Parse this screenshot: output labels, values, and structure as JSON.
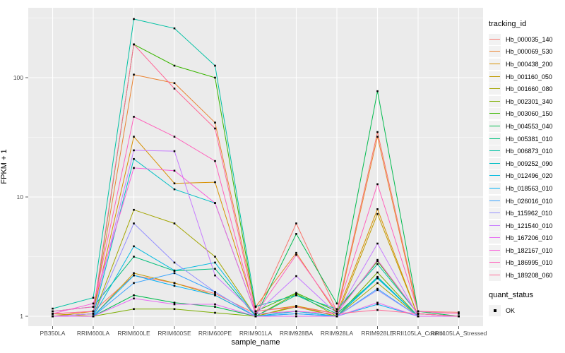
{
  "chart_data": {
    "type": "line",
    "xlabel": "sample_name",
    "ylabel": "FPKM + 1",
    "y_scale": "log10",
    "y_ticks": [
      1,
      10,
      100
    ],
    "ylim": [
      0.9,
      380
    ],
    "grid": true,
    "panel_bg": "#ebebeb",
    "grid_color": "#ffffff",
    "point_color": "#000000",
    "legend_position": "right",
    "legend_title": "tracking_id",
    "legend2_title": "quant_status",
    "legend2_items": [
      {
        "label": "OK"
      }
    ],
    "categories": [
      "PB350LA",
      "RRIM600LA",
      "RRIM600LE",
      "RRIM600SE",
      "RRIM600PE",
      "RRIM901LA",
      "RRIM928BA",
      "RRIM928LA",
      "RRIM928LE",
      "RRII105LA_Control",
      "RRII105LA_Stressed"
    ],
    "series": [
      {
        "name": "Hb_000035_140",
        "color": "#F8766D",
        "values": [
          1.05,
          1.1,
          2.2,
          1.9,
          1.55,
          1.05,
          6.0,
          1.1,
          35.0,
          1.1,
          1.08
        ]
      },
      {
        "name": "Hb_000069_530",
        "color": "#EA8331",
        "values": [
          1.0,
          1.05,
          106,
          90.0,
          42.0,
          1.2,
          3.4,
          1.05,
          32.0,
          1.05,
          1.0
        ]
      },
      {
        "name": "Hb_000438_200",
        "color": "#D89000",
        "values": [
          1.0,
          1.1,
          32.0,
          13.0,
          13.3,
          1.1,
          1.22,
          1.05,
          7.9,
          1.0,
          1.0
        ]
      },
      {
        "name": "Hb_001160_050",
        "color": "#C09B00",
        "values": [
          1.05,
          1.0,
          2.3,
          1.9,
          1.5,
          1.0,
          1.22,
          1.0,
          7.2,
          1.0,
          1.0
        ]
      },
      {
        "name": "Hb_001660_080",
        "color": "#A3A500",
        "values": [
          1.0,
          1.0,
          7.8,
          6.0,
          3.16,
          1.0,
          1.2,
          1.0,
          1.9,
          1.0,
          1.0
        ]
      },
      {
        "name": "Hb_002301_340",
        "color": "#7CAE00",
        "values": [
          1.0,
          1.0,
          1.15,
          1.15,
          1.07,
          1.0,
          1.55,
          1.0,
          2.33,
          1.0,
          1.0
        ]
      },
      {
        "name": "Hb_003060_150",
        "color": "#39B600",
        "values": [
          1.0,
          1.05,
          190,
          126,
          100,
          1.1,
          1.57,
          1.1,
          2.9,
          1.05,
          1.0
        ]
      },
      {
        "name": "Hb_004553_040",
        "color": "#00BB4E",
        "values": [
          1.0,
          1.0,
          1.5,
          1.3,
          1.2,
          1.0,
          4.9,
          1.28,
          77.0,
          1.1,
          1.0
        ]
      },
      {
        "name": "Hb_005381_010",
        "color": "#00BF7D",
        "values": [
          1.1,
          1.2,
          3.16,
          2.4,
          2.5,
          1.0,
          1.5,
          1.05,
          2.1,
          1.0,
          1.0
        ]
      },
      {
        "name": "Hb_006873_010",
        "color": "#00C1A3",
        "values": [
          1.16,
          1.43,
          310,
          259,
          126,
          1.21,
          1.5,
          1.15,
          2.74,
          1.05,
          1.0
        ]
      },
      {
        "name": "Hb_009252_090",
        "color": "#00BFC4",
        "values": [
          1.0,
          1.0,
          20.8,
          11.6,
          8.9,
          1.05,
          1.1,
          1.0,
          2.14,
          1.0,
          1.0
        ]
      },
      {
        "name": "Hb_012496_020",
        "color": "#00BAE0",
        "values": [
          1.0,
          1.0,
          3.86,
          2.42,
          2.82,
          1.0,
          1.1,
          1.0,
          2.08,
          1.0,
          1.0
        ]
      },
      {
        "name": "Hb_018563_010",
        "color": "#00B0F6",
        "values": [
          1.0,
          1.0,
          2.2,
          1.8,
          1.5,
          1.0,
          1.05,
          1.0,
          1.26,
          1.0,
          1.0
        ]
      },
      {
        "name": "Hb_026016_010",
        "color": "#35A2FF",
        "values": [
          1.0,
          1.0,
          1.9,
          2.3,
          1.6,
          1.0,
          1.05,
          1.0,
          1.7,
          1.0,
          1.0
        ]
      },
      {
        "name": "Hb_115962_010",
        "color": "#9590FF",
        "values": [
          1.0,
          1.0,
          6.0,
          2.82,
          1.6,
          1.0,
          1.0,
          1.0,
          1.66,
          1.0,
          1.0
        ]
      },
      {
        "name": "Hb_121540_010",
        "color": "#C77CFF",
        "values": [
          1.0,
          1.05,
          24.6,
          24.2,
          2.2,
          1.05,
          2.17,
          1.05,
          4.07,
          1.0,
          1.0
        ]
      },
      {
        "name": "Hb_167206_010",
        "color": "#E76BF3",
        "values": [
          1.0,
          1.0,
          1.41,
          1.26,
          1.26,
          1.0,
          1.0,
          1.0,
          1.3,
          1.0,
          1.0
        ]
      },
      {
        "name": "Hb_182167_010",
        "color": "#FA62DB",
        "values": [
          1.05,
          1.28,
          17.5,
          16.6,
          8.9,
          1.05,
          1.1,
          1.05,
          2.97,
          1.05,
          1.0
        ]
      },
      {
        "name": "Hb_186995_010",
        "color": "#FF62BC",
        "values": [
          1.1,
          1.2,
          47.0,
          32.0,
          20.0,
          1.05,
          3.27,
          1.1,
          12.8,
          1.1,
          1.05
        ]
      },
      {
        "name": "Hb_189208_060",
        "color": "#FF6A98",
        "values": [
          1.05,
          1.1,
          190,
          81.0,
          37.5,
          1.1,
          1.2,
          1.05,
          1.13,
          1.05,
          1.0
        ]
      }
    ]
  }
}
